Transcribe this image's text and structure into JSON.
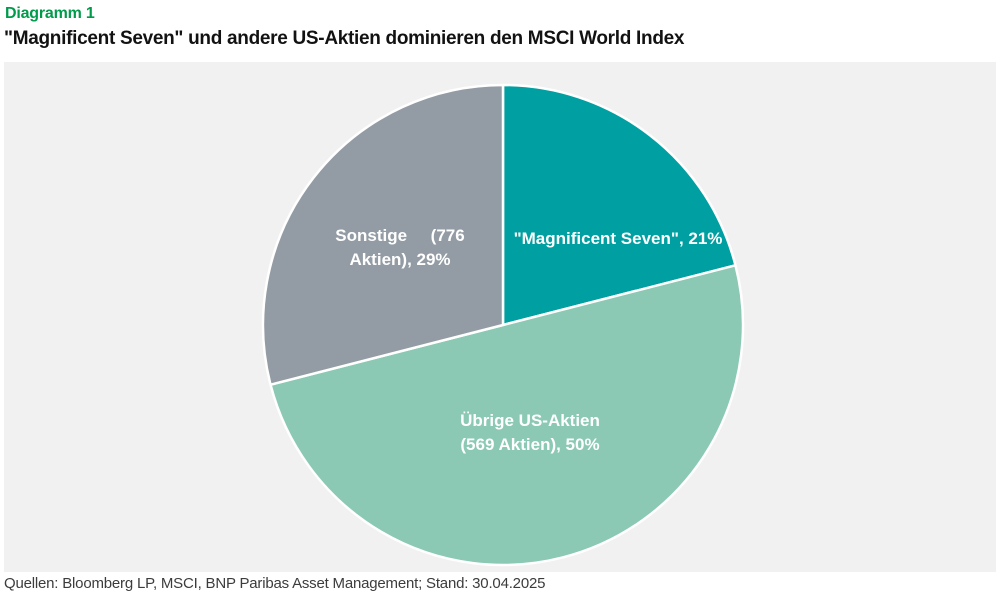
{
  "header": {
    "kicker": "Diagramm 1",
    "title": "\"Magnificent Seven\" und andere US-Aktien dominieren den MSCI World Index"
  },
  "footer": {
    "source": "Quellen: Bloomberg LP, MSCI, BNP Paribas Asset Management; Stand: 30.04.2025"
  },
  "colors": {
    "kicker_green": "#009B4A",
    "panel_background": "#F1F1F2",
    "slice_divider": "#FFFFFF",
    "label_text": "#FFFFFF"
  },
  "chart_data": {
    "type": "pie",
    "title": "\"Magnificent Seven\" und andere US-Aktien dominieren den MSCI World Index",
    "start_angle_deg": 0,
    "direction": "clockwise",
    "legend_position": "none",
    "slices": [
      {
        "name": "\"Magnificent Seven\"",
        "value_pct": 21,
        "color": "#00A0A2",
        "label_lines": [
          "\"Magnificent Seven\", 21%"
        ]
      },
      {
        "name": "Übrige US-Aktien",
        "num_aktien": 569,
        "value_pct": 50,
        "color": "#8BC9B4",
        "label_lines": [
          "Übrige US-Aktien",
          "(569 Aktien), 50%"
        ]
      },
      {
        "name": "Sonstige",
        "num_aktien": 776,
        "value_pct": 29,
        "color": "#939CA4",
        "label_lines": [
          "Sonstige     (776",
          "Aktien), 29%"
        ]
      }
    ]
  }
}
